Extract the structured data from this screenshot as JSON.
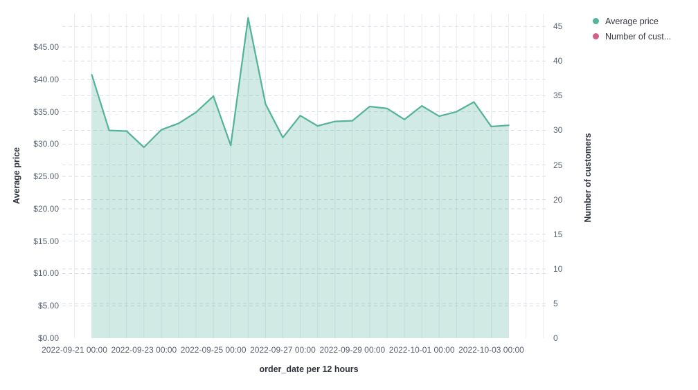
{
  "chart": {
    "legend": [
      {
        "label": "Average price",
        "color": "#54B399"
      },
      {
        "label": "Number of cust...",
        "color": "#D36086"
      }
    ],
    "x_axis": {
      "title": "order_date per 12 hours",
      "tick_labels": [
        "2022-09-21 00:00",
        "2022-09-23 00:00",
        "2022-09-25 00:00",
        "2022-09-27 00:00",
        "2022-09-29 00:00",
        "2022-10-01 00:00",
        "2022-10-03 00:00"
      ]
    },
    "left_axis": {
      "title": "Average price",
      "tick_labels": [
        "$0.00",
        "$5.00",
        "$10.00",
        "$15.00",
        "$20.00",
        "$25.00",
        "$30.00",
        "$35.00",
        "$40.00",
        "$45.00"
      ]
    },
    "right_axis": {
      "title": "Number of customers",
      "tick_labels": [
        "0",
        "5",
        "10",
        "15",
        "20",
        "25",
        "30",
        "35",
        "40",
        "45"
      ]
    }
  },
  "chart_data": {
    "type": "area",
    "title": "",
    "xlabel": "order_date per 12 hours",
    "left_ylabel": "Average price",
    "right_ylabel": "Number of customers",
    "left_axis_ticks": [
      0,
      5,
      10,
      15,
      20,
      25,
      30,
      35,
      40,
      45
    ],
    "right_axis_ticks": [
      0,
      5,
      10,
      15,
      20,
      25,
      30,
      35,
      40,
      45
    ],
    "grid": true,
    "legend_position": "top-right",
    "x": [
      "2022-09-21 12:00",
      "2022-09-22 00:00",
      "2022-09-22 12:00",
      "2022-09-23 00:00",
      "2022-09-23 12:00",
      "2022-09-24 00:00",
      "2022-09-24 12:00",
      "2022-09-25 00:00",
      "2022-09-25 12:00",
      "2022-09-26 00:00",
      "2022-09-26 12:00",
      "2022-09-27 00:00",
      "2022-09-27 12:00",
      "2022-09-28 00:00",
      "2022-09-28 12:00",
      "2022-09-29 00:00",
      "2022-09-29 12:00",
      "2022-09-30 00:00",
      "2022-09-30 12:00",
      "2022-10-01 00:00",
      "2022-10-01 12:00",
      "2022-10-02 00:00",
      "2022-10-02 12:00",
      "2022-10-03 00:00",
      "2022-10-03 12:00"
    ],
    "series": [
      {
        "name": "Average price",
        "axis": "left",
        "color": "#54B399",
        "values": [
          40.7,
          32.1,
          32.0,
          29.5,
          32.2,
          33.2,
          34.9,
          37.4,
          29.8,
          49.5,
          36.2,
          31.0,
          34.4,
          32.8,
          33.5,
          33.6,
          35.8,
          35.5,
          33.8,
          35.9,
          34.3,
          35.0,
          36.5,
          32.7,
          32.9
        ]
      },
      {
        "name": "Number of customers",
        "axis": "right",
        "color": "#D36086",
        "values": []
      }
    ]
  }
}
